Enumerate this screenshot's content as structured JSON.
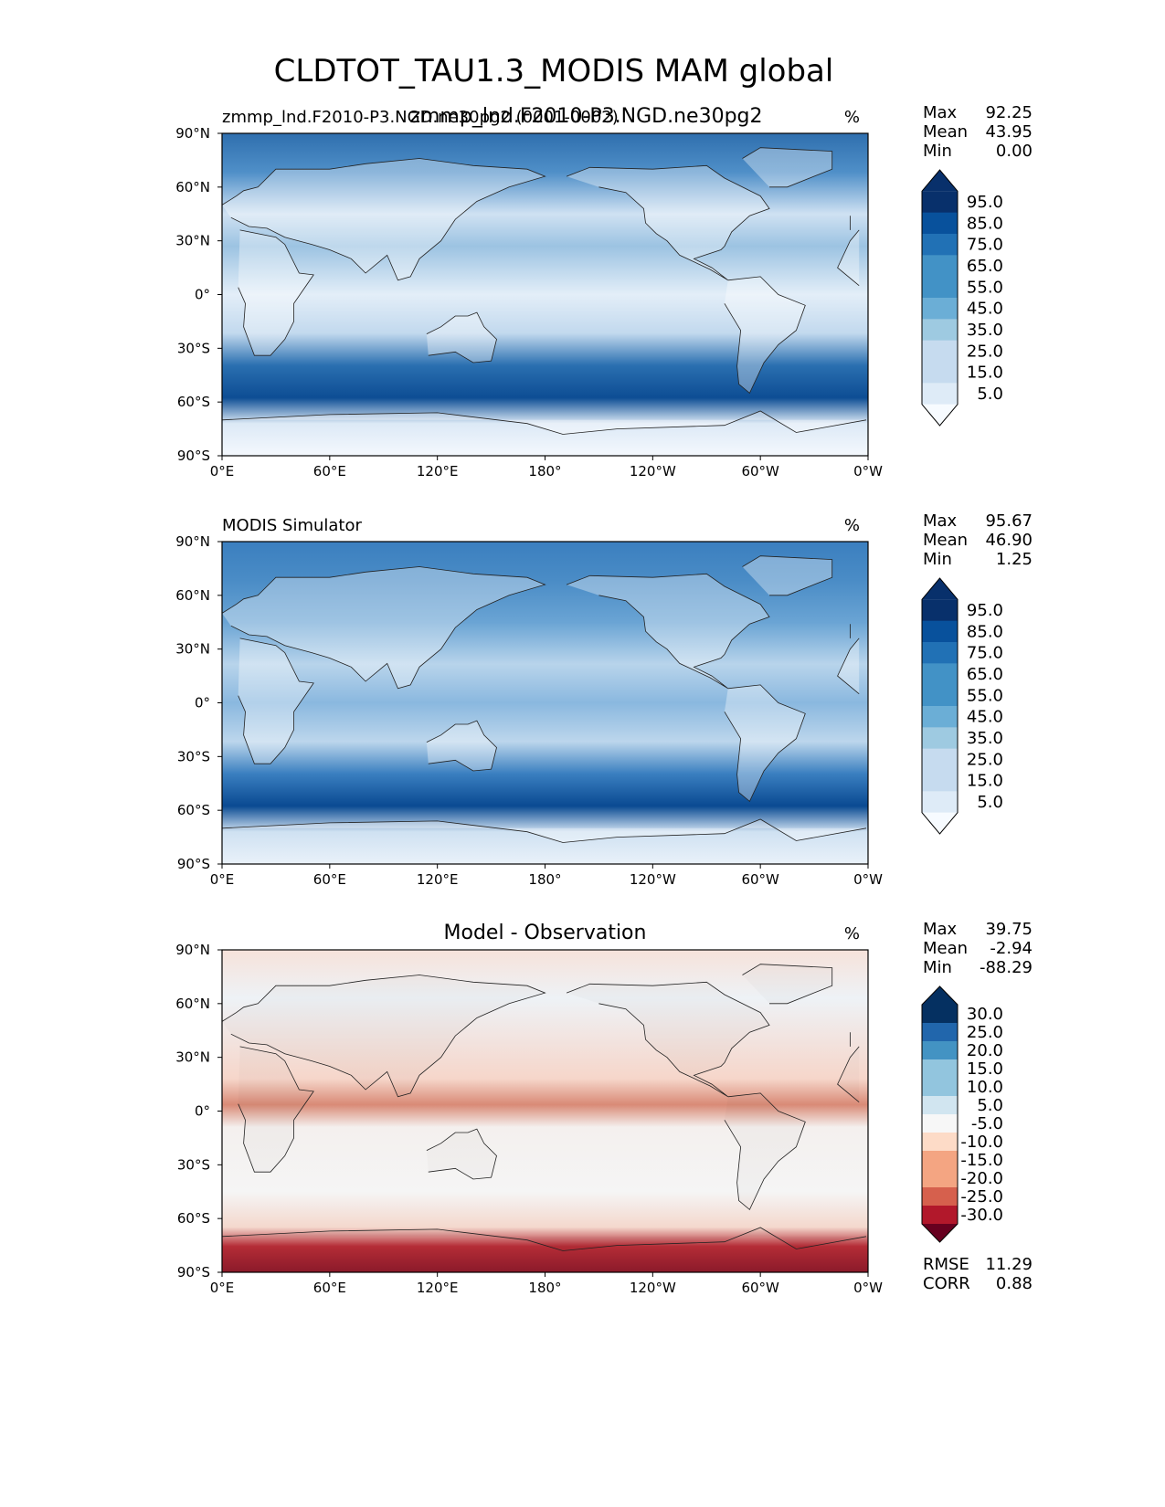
{
  "title": "CLDTOT_TAU1.3_MODIS MAM global",
  "chart_data": [
    {
      "type": "heatmap",
      "panel": "test",
      "title": "zmmp_lnd.F2010-P3.NGD.ne30pg2",
      "left_label": "zmmp_lnd.F2010-P3.NGD.ne30pg2 (0001-0002)",
      "units": "%",
      "stats": [
        {
          "label": "Max",
          "value": "92.25"
        },
        {
          "label": "Mean",
          "value": "43.95"
        },
        {
          "label": "Min",
          "value": "0.00"
        }
      ],
      "colorbar_ticks": [
        "95.0",
        "85.0",
        "75.0",
        "65.0",
        "55.0",
        "45.0",
        "35.0",
        "25.0",
        "15.0",
        "5.0"
      ],
      "xlim": [
        0,
        360
      ],
      "ylim": [
        -90,
        90
      ],
      "xticks": [
        "0°E",
        "60°E",
        "120°E",
        "180°",
        "120°W",
        "60°W",
        "0°W"
      ],
      "yticks": [
        "90°N",
        "60°N",
        "30°N",
        "0°",
        "30°S",
        "60°S",
        "90°S"
      ]
    },
    {
      "type": "heatmap",
      "panel": "reference",
      "title": "",
      "left_label": "MODIS Simulator",
      "units": "%",
      "stats": [
        {
          "label": "Max",
          "value": "95.67"
        },
        {
          "label": "Mean",
          "value": "46.90"
        },
        {
          "label": "Min",
          "value": "1.25"
        }
      ],
      "colorbar_ticks": [
        "95.0",
        "85.0",
        "75.0",
        "65.0",
        "55.0",
        "45.0",
        "35.0",
        "25.0",
        "15.0",
        "5.0"
      ],
      "xlim": [
        0,
        360
      ],
      "ylim": [
        -90,
        90
      ],
      "xticks": [
        "0°E",
        "60°E",
        "120°E",
        "180°",
        "120°W",
        "60°W",
        "0°W"
      ],
      "yticks": [
        "90°N",
        "60°N",
        "30°N",
        "0°",
        "30°S",
        "60°S",
        "90°S"
      ]
    },
    {
      "type": "heatmap",
      "panel": "difference",
      "title": "Model - Observation",
      "left_label": "",
      "units": "%",
      "stats": [
        {
          "label": "Max",
          "value": "39.75"
        },
        {
          "label": "Mean",
          "value": "-2.94"
        },
        {
          "label": "Min",
          "value": "-88.29"
        }
      ],
      "colorbar_ticks": [
        "30.0",
        "25.0",
        "20.0",
        "15.0",
        "10.0",
        "5.0",
        "-5.0",
        "-10.0",
        "-15.0",
        "-20.0",
        "-25.0",
        "-30.0"
      ],
      "extra_stats": [
        {
          "label": "RMSE",
          "value": "11.29"
        },
        {
          "label": "CORR",
          "value": "0.88"
        }
      ],
      "xlim": [
        0,
        360
      ],
      "ylim": [
        -90,
        90
      ],
      "xticks": [
        "0°E",
        "60°E",
        "120°E",
        "180°",
        "120°W",
        "60°W",
        "0°W"
      ],
      "yticks": [
        "90°N",
        "60°N",
        "30°N",
        "0°",
        "30°S",
        "60°S",
        "90°S"
      ]
    }
  ],
  "colors": {
    "blues": [
      "#f7fbff",
      "#deebf7",
      "#c6dbef",
      "#9ecae1",
      "#6baed6",
      "#4292c6",
      "#2171b5",
      "#08519c",
      "#08306b"
    ],
    "rdbu": [
      "#67001f",
      "#b2182b",
      "#d6604d",
      "#f4a582",
      "#fddbc7",
      "#f7f7f7",
      "#d1e5f0",
      "#92c5de",
      "#4393c3",
      "#2166ac",
      "#053061"
    ]
  }
}
